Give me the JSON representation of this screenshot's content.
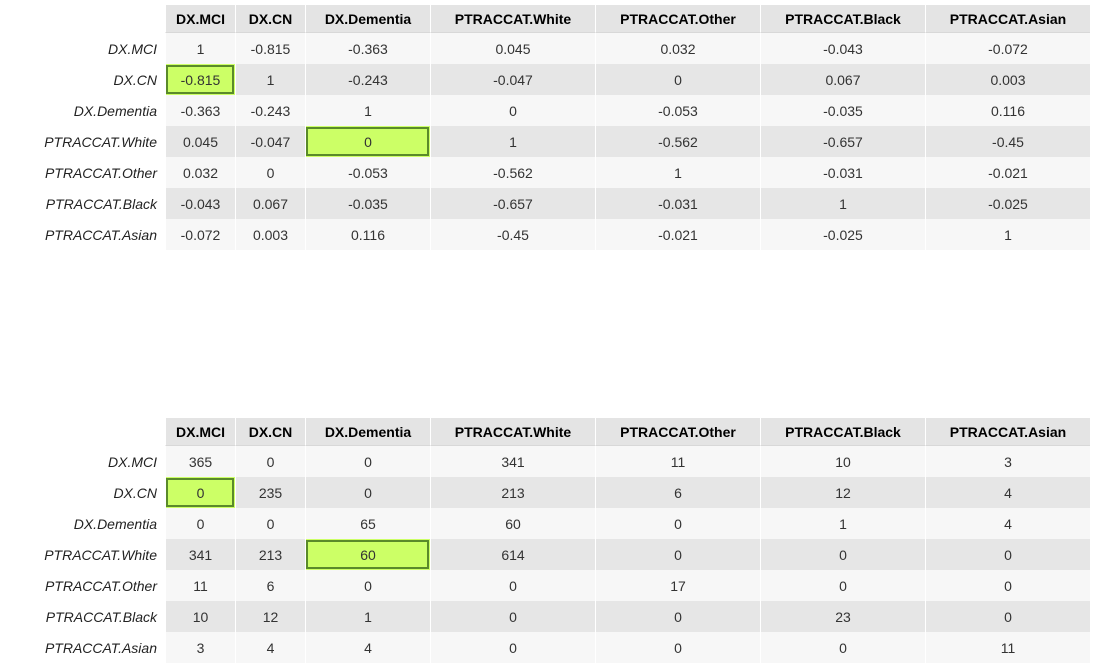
{
  "columns": [
    "DX.MCI",
    "DX.CN",
    "DX.Dementia",
    "PTRACCAT.White",
    "PTRACCAT.Other",
    "PTRACCAT.Black",
    "PTRACCAT.Asian"
  ],
  "colors": {
    "highlight_fill": "#ccff66",
    "highlight_border": "#5a8a2a",
    "header_bg": "#e4e4e4",
    "row_odd_bg": "#f7f7f7",
    "row_even_bg": "#e6e6e6"
  },
  "tables": [
    {
      "name": "correlation-table",
      "highlight": [
        [
          1,
          0
        ],
        [
          3,
          2
        ]
      ],
      "rows": [
        {
          "label": "DX.MCI",
          "values": [
            "1",
            "-0.815",
            "-0.363",
            "0.045",
            "0.032",
            "-0.043",
            "-0.072"
          ]
        },
        {
          "label": "DX.CN",
          "values": [
            "-0.815",
            "1",
            "-0.243",
            "-0.047",
            "0",
            "0.067",
            "0.003"
          ]
        },
        {
          "label": "DX.Dementia",
          "values": [
            "-0.363",
            "-0.243",
            "1",
            "0",
            "-0.053",
            "-0.035",
            "0.116"
          ]
        },
        {
          "label": "PTRACCAT.White",
          "values": [
            "0.045",
            "-0.047",
            "0",
            "1",
            "-0.562",
            "-0.657",
            "-0.45"
          ]
        },
        {
          "label": "PTRACCAT.Other",
          "values": [
            "0.032",
            "0",
            "-0.053",
            "-0.562",
            "1",
            "-0.031",
            "-0.021"
          ]
        },
        {
          "label": "PTRACCAT.Black",
          "values": [
            "-0.043",
            "0.067",
            "-0.035",
            "-0.657",
            "-0.031",
            "1",
            "-0.025"
          ]
        },
        {
          "label": "PTRACCAT.Asian",
          "values": [
            "-0.072",
            "0.003",
            "0.116",
            "-0.45",
            "-0.021",
            "-0.025",
            "1"
          ]
        }
      ]
    },
    {
      "name": "count-table",
      "highlight": [
        [
          1,
          0
        ],
        [
          3,
          2
        ]
      ],
      "rows": [
        {
          "label": "DX.MCI",
          "values": [
            "365",
            "0",
            "0",
            "341",
            "11",
            "10",
            "3"
          ]
        },
        {
          "label": "DX.CN",
          "values": [
            "0",
            "235",
            "0",
            "213",
            "6",
            "12",
            "4"
          ]
        },
        {
          "label": "DX.Dementia",
          "values": [
            "0",
            "0",
            "65",
            "60",
            "0",
            "1",
            "4"
          ]
        },
        {
          "label": "PTRACCAT.White",
          "values": [
            "341",
            "213",
            "60",
            "614",
            "0",
            "0",
            "0"
          ]
        },
        {
          "label": "PTRACCAT.Other",
          "values": [
            "11",
            "6",
            "0",
            "0",
            "17",
            "0",
            "0"
          ]
        },
        {
          "label": "PTRACCAT.Black",
          "values": [
            "10",
            "12",
            "1",
            "0",
            "0",
            "23",
            "0"
          ]
        },
        {
          "label": "PTRACCAT.Asian",
          "values": [
            "3",
            "4",
            "4",
            "0",
            "0",
            "0",
            "11"
          ]
        }
      ]
    }
  ]
}
